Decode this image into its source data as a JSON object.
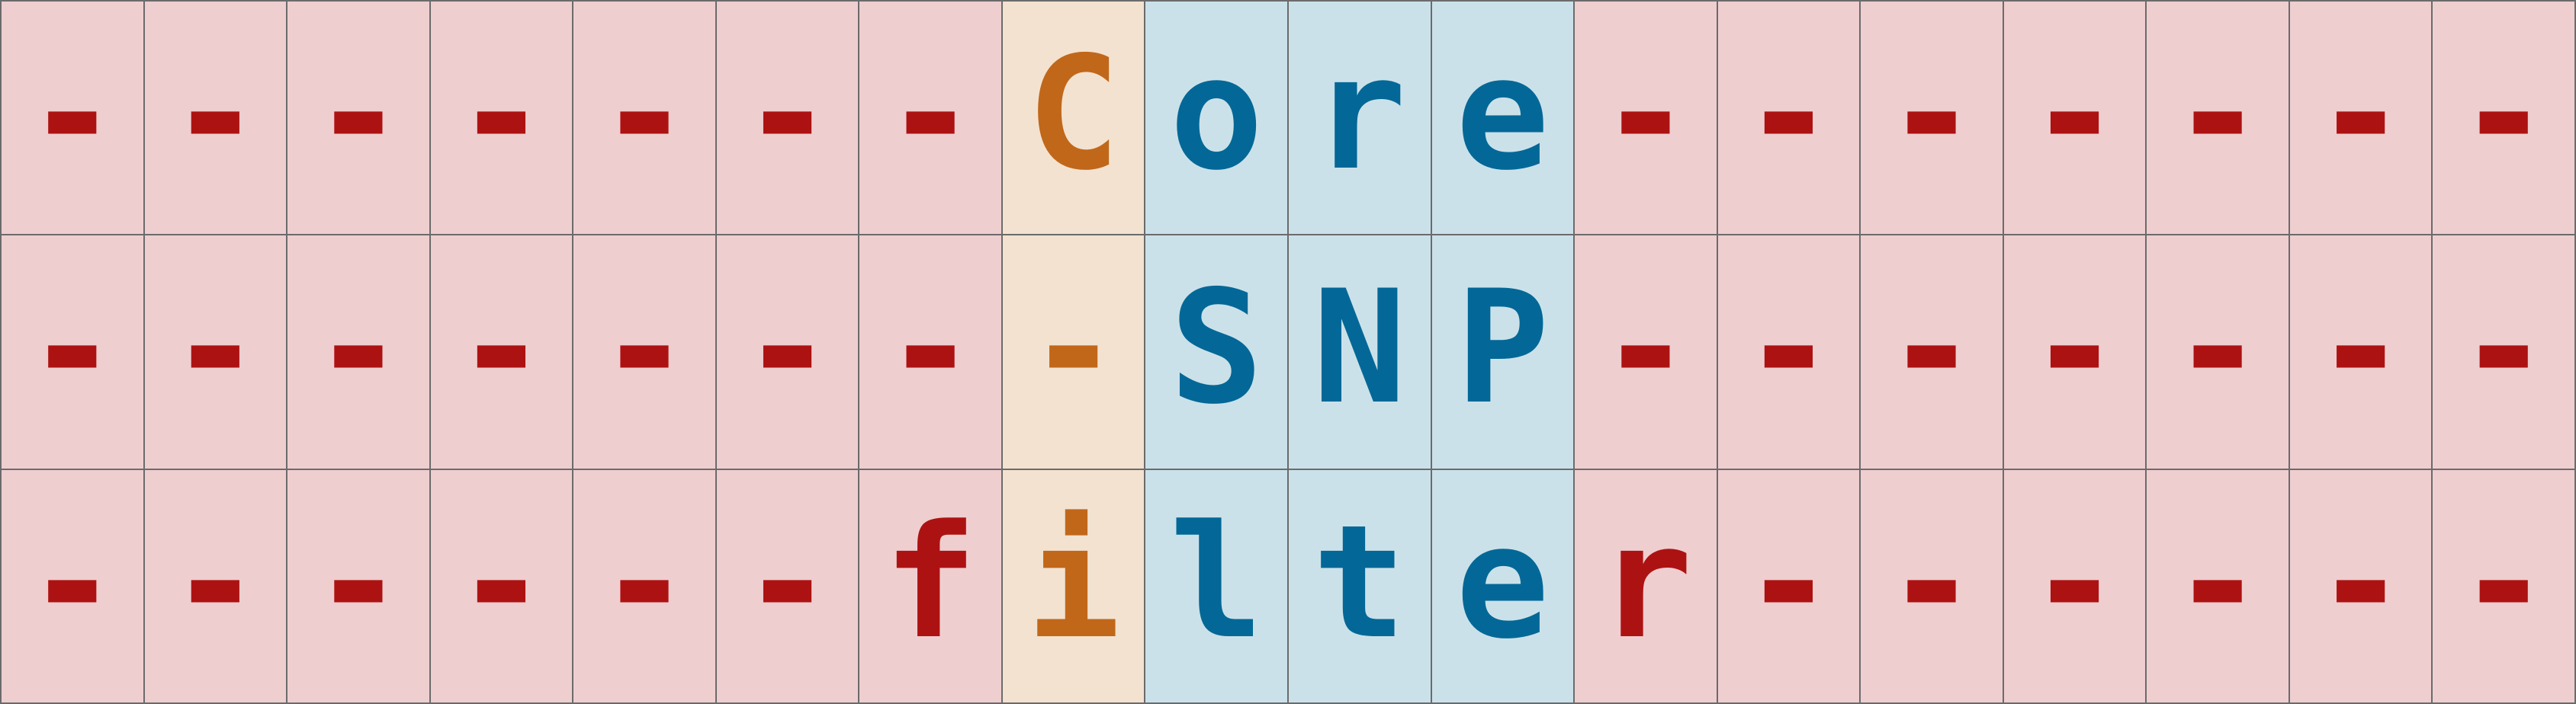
{
  "colors": {
    "red_bg": "#efced0",
    "red_fg": "#ad1212",
    "orange_bg": "#f3e2d0",
    "orange_fg": "#c1671a",
    "blue_bg": "#cbe1e9",
    "blue_fg": "#036897",
    "grid_line": "#6b6b6b"
  },
  "rows": [
    [
      "-",
      "-",
      "-",
      "-",
      "-",
      "-",
      "-",
      "C",
      "o",
      "r",
      "e",
      "-",
      "-",
      "-",
      "-",
      "-",
      "-",
      "-"
    ],
    [
      "-",
      "-",
      "-",
      "-",
      "-",
      "-",
      "-",
      "-",
      "S",
      "N",
      "P",
      "-",
      "-",
      "-",
      "-",
      "-",
      "-",
      "-"
    ],
    [
      "-",
      "-",
      "-",
      "-",
      "-",
      "-",
      "f",
      "i",
      "l",
      "t",
      "e",
      "r",
      "-",
      "-",
      "-",
      "-",
      "-",
      "-"
    ]
  ],
  "cell_colors": [
    [
      "red",
      "red",
      "red",
      "red",
      "red",
      "red",
      "red",
      "orange",
      "blue",
      "blue",
      "blue",
      "red",
      "red",
      "red",
      "red",
      "red",
      "red",
      "red"
    ],
    [
      "red",
      "red",
      "red",
      "red",
      "red",
      "red",
      "red",
      "orange",
      "blue",
      "blue",
      "blue",
      "red",
      "red",
      "red",
      "red",
      "red",
      "red",
      "red"
    ],
    [
      "red",
      "red",
      "red",
      "red",
      "red",
      "red",
      "red",
      "orange",
      "blue",
      "blue",
      "blue",
      "red",
      "red",
      "red",
      "red",
      "red",
      "red",
      "red"
    ]
  ]
}
